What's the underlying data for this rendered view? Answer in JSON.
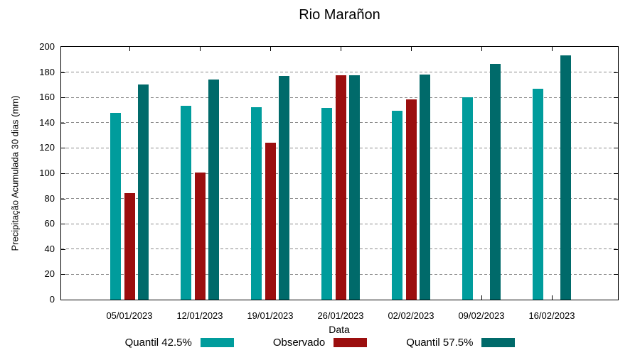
{
  "chart_data": {
    "type": "bar",
    "title": "Rio Marañon",
    "xlabel": "Data",
    "ylabel": "Precipitação Acumulada 30 dias (mm)",
    "categories": [
      "05/01/2023",
      "12/01/2023",
      "19/01/2023",
      "26/01/2023",
      "02/02/2023",
      "09/02/2023",
      "16/02/2023"
    ],
    "series": [
      {
        "name": "Quantil 42.5%",
        "color": "#009C9C",
        "values": [
          147.5,
          153.5,
          152.5,
          151.5,
          149.5,
          160,
          167
        ]
      },
      {
        "name": "Observado",
        "color": "#9B0E0E",
        "values": [
          84,
          100.5,
          124,
          177.5,
          158.5,
          null,
          null
        ]
      },
      {
        "name": "Quantil 57.5%",
        "color": "#006A6A",
        "values": [
          170,
          174,
          177,
          177.5,
          178,
          186.5,
          193
        ]
      }
    ],
    "ylim": [
      0,
      200
    ],
    "ytick_step": 20,
    "grid": true,
    "legend_position": "bottom",
    "axis_color": "#000000",
    "grid_color": "#8a8a8a",
    "background_color": "#ffffff"
  }
}
